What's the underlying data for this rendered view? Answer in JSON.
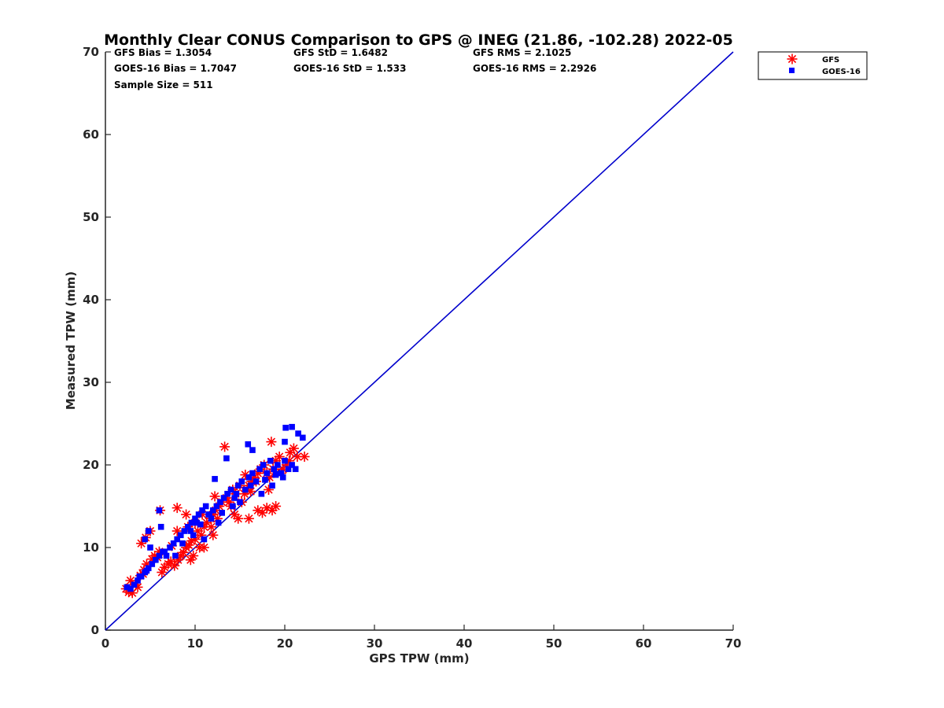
{
  "chart_data": {
    "type": "scatter",
    "title": "Monthly Clear CONUS Comparison to GPS @ INEG (21.86, -102.28) 2022-05",
    "xlabel": "GPS TPW (mm)",
    "ylabel": "Measured TPW (mm)",
    "xlim": [
      0,
      70
    ],
    "ylim": [
      0,
      70
    ],
    "xticks": [
      "0",
      "10",
      "20",
      "30",
      "40",
      "50",
      "60",
      "70"
    ],
    "yticks": [
      "0",
      "10",
      "20",
      "30",
      "40",
      "50",
      "60",
      "70"
    ],
    "grid": false,
    "legend_position": "top-right outside",
    "annotations": {
      "gfs_bias": "GFS Bias = 1.3054",
      "gfs_std": "GFS StD = 1.6482",
      "gfs_rms": "GFS RMS = 2.1025",
      "goes_bias": "GOES-16 Bias = 1.7047",
      "goes_std": "GOES-16 StD = 1.533",
      "goes_rms": "GOES-16 RMS = 2.2926",
      "sample_size": "Sample Size = 511"
    },
    "reference_line": {
      "name": "1:1",
      "x": [
        0,
        70
      ],
      "y": [
        0,
        70
      ],
      "color": "#0000cc"
    },
    "series": [
      {
        "name": "GFS",
        "marker": "asterisk",
        "color": "#ff0000",
        "x": [
          2.3,
          2.6,
          3.0,
          3.4,
          2.8,
          3.9,
          4.3,
          4.6,
          5.2,
          5.5,
          6.0,
          4.0,
          4.5,
          5.0,
          6.3,
          6.6,
          7.0,
          7.3,
          7.7,
          8.1,
          8.4,
          8.7,
          9.0,
          9.3,
          9.6,
          8.0,
          9.0,
          10.0,
          10.3,
          10.7,
          11.0,
          11.3,
          11.7,
          12.0,
          12.3,
          12.7,
          13.0,
          13.5,
          14.0,
          14.4,
          14.8,
          15.2,
          15.5,
          15.8,
          16.0,
          16.3,
          16.6,
          17.0,
          17.3,
          17.7,
          18.0,
          18.3,
          18.7,
          19.0,
          19.4,
          19.8,
          20.2,
          20.6,
          21.0,
          21.4,
          22.2,
          17.5,
          18.0,
          18.6,
          19.0,
          13.3,
          18.5,
          6.1,
          8.0,
          10.0,
          11.0,
          12.0,
          16.0,
          17.0,
          9.5,
          9.8,
          10.5,
          11.8,
          12.5,
          13.8,
          14.5,
          15.0,
          16.8,
          18.2,
          19.6,
          20.5,
          3.6,
          4.2,
          5.8,
          7.4,
          9.2,
          10.8,
          12.2,
          14.2,
          15.6,
          16.2
        ],
        "y": [
          5.0,
          4.6,
          4.5,
          5.5,
          6.0,
          6.6,
          7.3,
          8.0,
          8.6,
          9.0,
          9.5,
          10.5,
          11.2,
          12.0,
          7.0,
          7.6,
          8.0,
          8.3,
          7.8,
          8.5,
          9.0,
          9.4,
          10.0,
          10.3,
          10.8,
          14.8,
          14.0,
          13.0,
          12.0,
          11.5,
          12.5,
          13.0,
          13.5,
          14.0,
          14.5,
          15.0,
          15.5,
          16.0,
          15.0,
          14.0,
          13.5,
          15.5,
          16.5,
          17.0,
          17.5,
          18.0,
          18.5,
          19.0,
          19.5,
          20.0,
          19.0,
          18.5,
          19.5,
          20.5,
          21.0,
          19.5,
          20.0,
          21.5,
          22.0,
          21.0,
          21.0,
          14.2,
          14.8,
          14.5,
          15.0,
          22.2,
          22.8,
          14.5,
          12.0,
          11.0,
          10.0,
          11.5,
          13.5,
          14.5,
          8.5,
          9.0,
          10.0,
          12.5,
          13.5,
          15.5,
          16.5,
          17.5,
          18.0,
          17.0,
          19.0,
          20.5,
          5.2,
          6.8,
          8.8,
          10.2,
          12.5,
          14.0,
          16.2,
          17.0,
          18.8,
          16.8
        ]
      },
      {
        "name": "GOES-16",
        "marker": "square",
        "color": "#0000ff",
        "x": [
          2.4,
          2.8,
          3.2,
          3.6,
          4.0,
          4.4,
          4.8,
          5.2,
          5.6,
          6.0,
          6.4,
          6.8,
          7.2,
          7.6,
          8.0,
          8.4,
          8.8,
          9.2,
          9.6,
          10.0,
          10.4,
          10.8,
          11.2,
          11.6,
          12.0,
          12.4,
          12.8,
          13.2,
          13.6,
          14.0,
          14.4,
          14.8,
          15.2,
          15.6,
          16.0,
          16.4,
          16.8,
          17.2,
          17.6,
          18.0,
          18.4,
          18.8,
          19.2,
          19.6,
          20.0,
          20.4,
          20.8,
          21.2,
          20.1,
          20.8,
          21.5,
          22.0,
          20.0,
          15.9,
          16.4,
          13.5,
          12.2,
          6.0,
          6.2,
          4.4,
          4.8,
          5.0,
          9.5,
          10.2,
          11.0,
          11.5,
          12.6,
          14.2,
          15.0,
          17.4,
          18.6,
          19.8,
          3.8,
          4.6,
          6.6,
          7.8,
          8.6,
          9.8,
          10.6,
          11.8,
          13.0,
          14.6,
          16.2,
          17.8,
          19.0
        ],
        "y": [
          5.2,
          5.0,
          5.5,
          6.0,
          6.5,
          7.0,
          7.5,
          8.0,
          8.5,
          9.0,
          9.5,
          9.0,
          10.0,
          10.5,
          11.0,
          11.5,
          12.0,
          12.5,
          13.0,
          13.5,
          14.0,
          14.5,
          15.0,
          14.0,
          14.5,
          15.0,
          15.5,
          16.0,
          16.5,
          17.0,
          16.0,
          17.5,
          18.0,
          17.0,
          18.5,
          19.0,
          18.0,
          19.5,
          20.0,
          19.0,
          20.5,
          19.5,
          20.0,
          19.0,
          20.5,
          19.5,
          20.0,
          19.5,
          24.5,
          24.6,
          23.8,
          23.3,
          22.8,
          22.5,
          21.8,
          20.8,
          18.3,
          14.5,
          12.5,
          11.0,
          12.0,
          10.0,
          12.0,
          13.0,
          11.0,
          14.0,
          13.0,
          15.0,
          15.5,
          16.5,
          17.5,
          18.5,
          6.5,
          7.2,
          9.5,
          9.0,
          10.5,
          11.5,
          12.8,
          13.5,
          14.2,
          16.5,
          17.5,
          18.2,
          18.8
        ]
      }
    ]
  }
}
